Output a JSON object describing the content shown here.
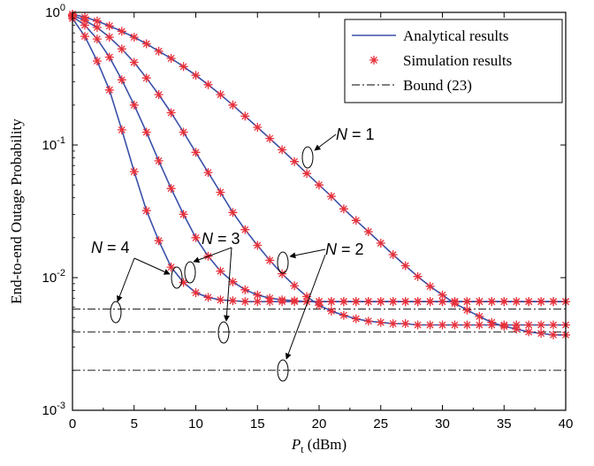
{
  "chart_data": {
    "type": "line",
    "title": "",
    "xlabel": "P",
    "xlabel_sub": "t",
    "xlabel_unit": " (dBm)",
    "ylabel": "End-to-end Outage Probability",
    "xlim": [
      0,
      40
    ],
    "ylim": [
      0.001,
      1
    ],
    "yscale": "log",
    "x_ticks": [
      0,
      5,
      10,
      15,
      20,
      25,
      30,
      35,
      40
    ],
    "x_tick_labels": [
      "0",
      "5",
      "10",
      "15",
      "20",
      "25",
      "30",
      "35",
      "40"
    ],
    "y_ticks": [
      0.001,
      0.01,
      0.1,
      1
    ],
    "y_tick_labels": [
      {
        "base": "10",
        "exp": "-3"
      },
      {
        "base": "10",
        "exp": "-2"
      },
      {
        "base": "10",
        "exp": "-1"
      },
      {
        "base": "10",
        "exp": "0"
      }
    ],
    "grid": false,
    "legend": {
      "placement": "top-right",
      "entries": [
        {
          "label": "Analytical results",
          "style": "line",
          "color": "#3a50a8"
        },
        {
          "label": "Simulation results",
          "style": "marker-star",
          "color": "#e8303a"
        },
        {
          "label": "Bound (23)",
          "style": "dash-dot",
          "color": "#000000"
        }
      ]
    },
    "colors": {
      "analytical": "#3a50a8",
      "simulation": "#e8303a",
      "bound": "#000000"
    },
    "x": [
      0,
      1,
      2,
      3,
      4,
      5,
      6,
      7,
      8,
      9,
      10,
      11,
      12,
      13,
      14,
      15,
      16,
      17,
      18,
      19,
      20,
      21,
      22,
      23,
      24,
      25,
      26,
      27,
      28,
      29,
      30,
      31,
      32,
      33,
      34,
      35,
      36,
      37,
      38,
      39,
      40
    ],
    "series": [
      {
        "id": "N1",
        "annotation": "N = 1",
        "values": [
          0.97,
          0.92,
          0.86,
          0.79,
          0.72,
          0.65,
          0.58,
          0.51,
          0.45,
          0.39,
          0.335,
          0.285,
          0.24,
          0.2,
          0.165,
          0.136,
          0.112,
          0.092,
          0.075,
          0.061,
          0.05,
          0.041,
          0.033,
          0.027,
          0.0222,
          0.0182,
          0.0149,
          0.0123,
          0.0102,
          0.0086,
          0.0074,
          0.0064,
          0.0057,
          0.0051,
          0.0046,
          0.0043,
          0.0041,
          0.0039,
          0.0038,
          0.0037,
          0.0037
        ]
      },
      {
        "id": "N2",
        "annotation": "N = 2",
        "values": [
          0.95,
          0.87,
          0.77,
          0.65,
          0.53,
          0.42,
          0.32,
          0.24,
          0.175,
          0.125,
          0.088,
          0.062,
          0.044,
          0.031,
          0.023,
          0.0175,
          0.0135,
          0.0107,
          0.0087,
          0.0072,
          0.0062,
          0.0056,
          0.0052,
          0.0049,
          0.0047,
          0.0046,
          0.0045,
          0.0045,
          0.0044,
          0.0044,
          0.0044,
          0.0044,
          0.0044,
          0.0044,
          0.0044,
          0.0044,
          0.0044,
          0.0044,
          0.0044,
          0.0044,
          0.0044
        ]
      },
      {
        "id": "N3",
        "annotation": "N = 3",
        "values": [
          0.93,
          0.8,
          0.63,
          0.46,
          0.31,
          0.2,
          0.125,
          0.076,
          0.047,
          0.03,
          0.02,
          0.0145,
          0.0112,
          0.0093,
          0.0081,
          0.0074,
          0.007,
          0.0068,
          0.0067,
          0.0066,
          0.0066,
          0.0066,
          0.0066,
          0.0066,
          0.0066,
          0.0066,
          0.0066,
          0.0066,
          0.0066,
          0.0066,
          0.0066,
          0.0066,
          0.0066,
          0.0066,
          0.0066,
          0.0066,
          0.0066,
          0.0066,
          0.0066,
          0.0066,
          0.0066
        ]
      },
      {
        "id": "N4",
        "annotation": "N = 4",
        "values": [
          0.9,
          0.66,
          0.43,
          0.26,
          0.13,
          0.063,
          0.032,
          0.019,
          0.012,
          0.0092,
          0.0077,
          0.0071,
          0.0068,
          0.0067,
          0.0066,
          0.0066,
          0.0066,
          0.0066,
          0.0066,
          0.0066,
          0.0066,
          0.0066,
          0.0066,
          0.0066,
          0.0066,
          0.0066,
          0.0066,
          0.0066,
          0.0066,
          0.0066,
          0.0066,
          0.0066,
          0.0066,
          0.0066,
          0.0066,
          0.0066,
          0.0066,
          0.0066,
          0.0066,
          0.0066,
          0.0066
        ]
      }
    ],
    "bounds": [
      {
        "id": "bound-upper",
        "value": 0.0058
      },
      {
        "id": "bound-middle",
        "value": 0.0039
      },
      {
        "id": "bound-lower",
        "value": 0.002
      }
    ],
    "annotations": [
      {
        "id": "N1",
        "text": "N = 1"
      },
      {
        "id": "N2",
        "text": "N = 2"
      },
      {
        "id": "N3",
        "text": "N = 3"
      },
      {
        "id": "N4",
        "text": "N = 4"
      }
    ]
  }
}
